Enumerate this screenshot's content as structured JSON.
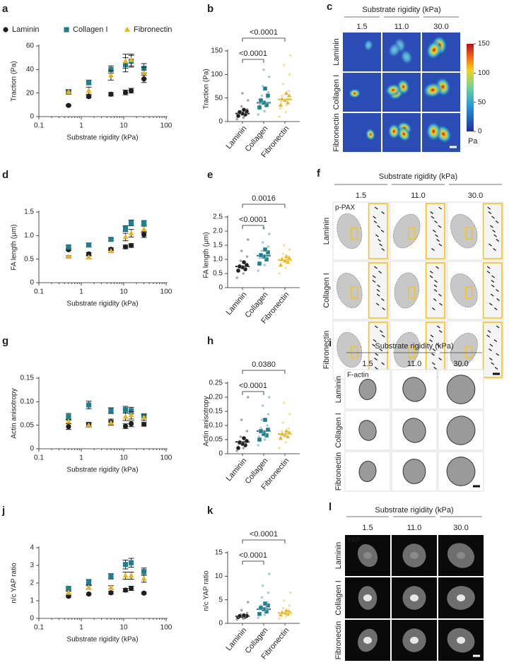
{
  "chart_data": [
    {
      "type": "scatter",
      "panel": "a",
      "xlabel": "Substrate rigidity (kPa)",
      "ylabel": "Traction (Pa)",
      "xscale": "log",
      "xlim": [
        0.1,
        100
      ],
      "xticks": [
        0.1,
        1,
        10,
        100
      ],
      "ylim": [
        0,
        60
      ],
      "yticks": [
        0,
        20,
        40,
        60
      ],
      "x": [
        0.5,
        1.5,
        5,
        11,
        15,
        30
      ],
      "series": [
        {
          "name": "Laminin",
          "color": "#1e1e1e",
          "marker": "circle",
          "values": [
            9.5,
            17,
            19,
            20.5,
            22,
            32
          ],
          "errors": [
            0.5,
            1,
            1.5,
            2,
            2,
            3
          ]
        },
        {
          "name": "Collagen I",
          "color": "#1f7f8f",
          "marker": "square",
          "values": [
            21,
            29,
            40,
            44,
            47,
            41
          ],
          "errors": [
            2,
            2,
            3,
            6,
            5,
            4
          ]
        },
        {
          "name": "Fibronectin",
          "color": "#e8b41c",
          "marker": "triangle",
          "values": [
            21,
            22,
            35,
            47,
            48,
            37
          ],
          "errors": [
            1,
            3,
            4,
            6,
            5,
            5
          ]
        }
      ]
    },
    {
      "type": "strip",
      "panel": "b",
      "ylabel": "Traction (Pa)",
      "ylim": [
        0,
        150
      ],
      "yticks": [
        0,
        50,
        100,
        150
      ],
      "groups": [
        {
          "name": "Laminin",
          "color": "#1e1e1e",
          "marker": "circle",
          "points": [
            5,
            8,
            10,
            12,
            14,
            15,
            17,
            19,
            22,
            26,
            32,
            45,
            60
          ],
          "means": [
            12,
            15,
            17,
            20,
            22,
            25
          ],
          "median": 17
        },
        {
          "name": "Collagen",
          "color": "#1f7f8f",
          "marker": "square",
          "points": [
            15,
            22,
            28,
            33,
            36,
            40,
            45,
            50,
            55,
            62,
            75,
            95,
            110
          ],
          "means": [
            30,
            35,
            40,
            45,
            55,
            70
          ],
          "median": 40
        },
        {
          "name": "Fibronectin",
          "color": "#e8b41c",
          "marker": "triangle",
          "points": [
            10,
            20,
            28,
            35,
            42,
            48,
            55,
            65,
            80,
            100,
            120,
            140
          ],
          "means": [
            35,
            40,
            45,
            48,
            55,
            60
          ],
          "median": 47
        }
      ],
      "comparisons": [
        {
          "label": "<0.0001"
        },
        {
          "label": "<0.0001"
        }
      ]
    },
    {
      "type": "scatter",
      "panel": "d",
      "xlabel": "Substrate rigidity (kPa)",
      "ylabel": "FA length (μm)",
      "xscale": "log",
      "xlim": [
        0.1,
        100
      ],
      "xticks": [
        0.1,
        1,
        10,
        100
      ],
      "ylim": [
        0,
        1.5
      ],
      "yticks": [
        0,
        0.5,
        {
          "value": 1,
          "label": "1.0"
        },
        1.5
      ],
      "x": [
        0.5,
        1.5,
        5,
        11,
        15,
        30
      ],
      "series": [
        {
          "color": "#1e1e1e",
          "marker": "circle",
          "values": [
            0.7,
            0.61,
            0.71,
            0.76,
            0.79,
            1.02
          ],
          "errors": [
            0.02,
            0.03,
            0.03,
            0.04,
            0.04,
            0.06
          ]
        },
        {
          "color": "#1f7f8f",
          "marker": "square",
          "values": [
            0.76,
            0.8,
            0.92,
            1.15,
            1.27,
            1.27
          ],
          "errors": [
            0.03,
            0.04,
            0.03,
            0.06,
            0.06,
            0.05
          ]
        },
        {
          "color": "#e8b41c",
          "marker": "triangle",
          "values": [
            0.55,
            0.54,
            0.67,
            0.97,
            1.05,
            1.13
          ],
          "errors": [
            0.02,
            0.03,
            0.03,
            0.08,
            0.08,
            0.07
          ]
        }
      ]
    },
    {
      "type": "strip",
      "panel": "e",
      "ylabel": "FA length (μm)",
      "ylim": [
        0,
        2.5
      ],
      "yticks": [
        0,
        0.5,
        {
          "value": 1,
          "label": "1.0"
        },
        1.5,
        {
          "value": 2,
          "label": "2.0"
        },
        2.5
      ],
      "groups": [
        {
          "name": "Laminin",
          "color": "#1e1e1e",
          "marker": "circle",
          "points": [
            0.35,
            0.5,
            0.6,
            0.65,
            0.7,
            0.75,
            0.8,
            0.85,
            0.95,
            1.1,
            1.3,
            1.7
          ],
          "means": [
            0.6,
            0.65,
            0.72,
            0.75,
            0.8,
            0.9
          ],
          "median": 0.75
        },
        {
          "name": "Collagen",
          "color": "#1f7f8f",
          "marker": "square",
          "points": [
            0.6,
            0.8,
            0.9,
            1.0,
            1.05,
            1.1,
            1.15,
            1.2,
            1.3,
            1.45,
            1.6,
            1.9,
            2.1
          ],
          "means": [
            0.85,
            1.0,
            1.1,
            1.15,
            1.25,
            1.35
          ],
          "median": 1.13
        },
        {
          "name": "Fibronectin",
          "color": "#e8b41c",
          "marker": "triangle",
          "points": [
            0.5,
            0.7,
            0.8,
            0.9,
            0.95,
            1.0,
            1.05,
            1.1,
            1.2,
            1.35,
            1.5
          ],
          "means": [
            0.8,
            0.9,
            0.95,
            1.0,
            1.05,
            1.1
          ],
          "median": 0.98
        }
      ],
      "comparisons": [
        {
          "label": "<0.0001"
        },
        {
          "label": "0.0016"
        }
      ]
    },
    {
      "type": "scatter",
      "panel": "g",
      "xlabel": "Substrate rigidity (kPa)",
      "ylabel": "Actin anisotropy",
      "xscale": "log",
      "xlim": [
        0.1,
        100
      ],
      "xticks": [
        0.1,
        1,
        10,
        100
      ],
      "ylim": [
        0,
        0.15
      ],
      "yticks": [
        0,
        0.05,
        {
          "value": 0.1,
          "label": "0.10"
        },
        0.15
      ],
      "x": [
        0.5,
        1.5,
        5,
        11,
        15,
        30
      ],
      "series": [
        {
          "color": "#1e1e1e",
          "marker": "circle",
          "values": [
            0.047,
            0.052,
            0.057,
            0.048,
            0.053,
            0.052
          ],
          "errors": [
            0.006,
            0.004,
            0.006,
            0.005,
            0.006,
            0.004
          ]
        },
        {
          "color": "#1f7f8f",
          "marker": "square",
          "values": [
            0.068,
            0.093,
            0.081,
            0.083,
            0.081,
            0.07
          ],
          "errors": [
            0.007,
            0.008,
            0.006,
            0.007,
            0.007,
            0.004
          ]
        },
        {
          "color": "#e8b41c",
          "marker": "triangle",
          "values": [
            0.058,
            0.05,
            0.055,
            0.068,
            0.071,
            0.066
          ],
          "errors": [
            0.004,
            0.004,
            0.005,
            0.008,
            0.008,
            0.006
          ]
        }
      ]
    },
    {
      "type": "strip",
      "panel": "h",
      "ylabel": "Actin anisotropy",
      "ylim": [
        0,
        0.25
      ],
      "yticks": [
        0,
        0.05,
        {
          "value": 0.1,
          "label": "0.10"
        },
        0.15,
        {
          "value": 0.2,
          "label": "0.20"
        },
        0.25
      ],
      "groups": [
        {
          "name": "Laminin",
          "color": "#1e1e1e",
          "marker": "circle",
          "points": [
            0.01,
            0.02,
            0.025,
            0.03,
            0.035,
            0.04,
            0.045,
            0.05,
            0.06,
            0.08,
            0.12,
            0.2
          ],
          "means": [
            0.02,
            0.03,
            0.035,
            0.04,
            0.045,
            0.055
          ],
          "median": 0.042
        },
        {
          "name": "Collagen",
          "color": "#1f7f8f",
          "marker": "square",
          "points": [
            0.03,
            0.05,
            0.06,
            0.07,
            0.075,
            0.08,
            0.09,
            0.1,
            0.12,
            0.14,
            0.17,
            0.2
          ],
          "means": [
            0.05,
            0.065,
            0.07,
            0.08,
            0.085,
            0.12
          ],
          "median": 0.08
        },
        {
          "name": "Fibronectin",
          "color": "#e8b41c",
          "marker": "triangle",
          "points": [
            0.02,
            0.04,
            0.05,
            0.06,
            0.065,
            0.07,
            0.08,
            0.09,
            0.11,
            0.14,
            0.18
          ],
          "means": [
            0.055,
            0.06,
            0.065,
            0.07,
            0.075,
            0.08
          ],
          "median": 0.07
        }
      ],
      "comparisons": [
        {
          "label": "<0.0001"
        },
        {
          "label": "0.0380"
        }
      ]
    },
    {
      "type": "scatter",
      "panel": "j",
      "xlabel": "Substrate rigidity (kPa)",
      "ylabel": "n/c YAP ratio",
      "xscale": "log",
      "xlim": [
        0.1,
        100
      ],
      "xticks": [
        0.1,
        1,
        10,
        100
      ],
      "ylim": [
        0,
        4
      ],
      "yticks": [
        0,
        1,
        2,
        3,
        4
      ],
      "x": [
        0.5,
        1.5,
        5,
        11,
        15,
        30
      ],
      "series": [
        {
          "color": "#1e1e1e",
          "marker": "circle",
          "values": [
            1.25,
            1.38,
            1.45,
            1.6,
            1.7,
            1.43
          ],
          "errors": [
            0.05,
            0.06,
            0.08,
            0.1,
            0.12,
            0.06
          ]
        },
        {
          "color": "#1f7f8f",
          "marker": "square",
          "values": [
            1.7,
            2.05,
            2.38,
            3.05,
            3.15,
            2.65
          ],
          "errors": [
            0.08,
            0.15,
            0.15,
            0.25,
            0.25,
            0.2
          ]
        },
        {
          "color": "#e8b41c",
          "marker": "triangle",
          "values": [
            1.45,
            1.75,
            1.75,
            2.42,
            2.42,
            2.25
          ],
          "errors": [
            0.08,
            0.1,
            0.1,
            0.2,
            0.2,
            0.2
          ]
        }
      ]
    },
    {
      "type": "strip",
      "panel": "k",
      "ylabel": "n/c YAP ratio",
      "ylim": [
        0,
        15
      ],
      "yticks": [
        0,
        5,
        10,
        15
      ],
      "groups": [
        {
          "name": "Laminin",
          "color": "#1e1e1e",
          "marker": "circle",
          "points": [
            0.8,
            1.0,
            1.2,
            1.3,
            1.4,
            1.5,
            1.6,
            1.7,
            1.9,
            2.2,
            2.8,
            4.5
          ],
          "means": [
            1.3,
            1.4,
            1.5,
            1.55,
            1.6,
            1.7
          ],
          "median": 1.5
        },
        {
          "name": "Collagen",
          "color": "#1f7f8f",
          "marker": "square",
          "points": [
            1.2,
            1.8,
            2.2,
            2.6,
            3.0,
            3.3,
            3.8,
            4.5,
            5.5,
            6.5,
            8,
            10.5
          ],
          "means": [
            2.0,
            2.5,
            3.0,
            3.3,
            3.8,
            4.2
          ],
          "median": 3.0
        },
        {
          "name": "Fibronectin",
          "color": "#e8b41c",
          "marker": "triangle",
          "points": [
            1.0,
            1.4,
            1.7,
            1.9,
            2.1,
            2.3,
            2.5,
            2.8,
            3.2,
            3.8,
            4.8,
            6.5
          ],
          "means": [
            1.8,
            2.0,
            2.2,
            2.3,
            2.5,
            2.7
          ],
          "median": 2.2
        }
      ],
      "comparisons": [
        {
          "label": "<0.0001"
        },
        {
          "label": "<0.0001"
        }
      ]
    }
  ],
  "images": [
    {
      "panel": "c",
      "title": "Substrate rigidity (kPa)",
      "columns": [
        "1.5",
        "11.0",
        "30.0"
      ],
      "rows": [
        "Laminin",
        "Collagen I",
        "Fibronectin"
      ],
      "colorbar": {
        "lim": [
          0,
          150
        ],
        "ticks": [
          0,
          50,
          100,
          150
        ],
        "label": "Pa"
      }
    },
    {
      "panel": "f",
      "title": "Substrate rigidity (kPa)",
      "columns": [
        "1.5",
        "11.0",
        "30.0"
      ],
      "rows": [
        "Laminin",
        "Collagen I",
        "Fibronectin"
      ],
      "stain": "p-PAX"
    },
    {
      "panel": "i",
      "title": "Substrate rigidity (kPa)",
      "columns": [
        "1.5",
        "11.0",
        "30.0"
      ],
      "rows": [
        "Laminin",
        "Collagen I",
        "Fibronectin"
      ],
      "stain": "F-actin"
    },
    {
      "panel": "l",
      "title": "Substrate rigidity (kPa)",
      "columns": [
        "1.5",
        "11.0",
        "30.0"
      ],
      "rows": [
        "Laminin",
        "Collagen I",
        "Fibronectin"
      ],
      "stain": "YAP"
    }
  ]
}
